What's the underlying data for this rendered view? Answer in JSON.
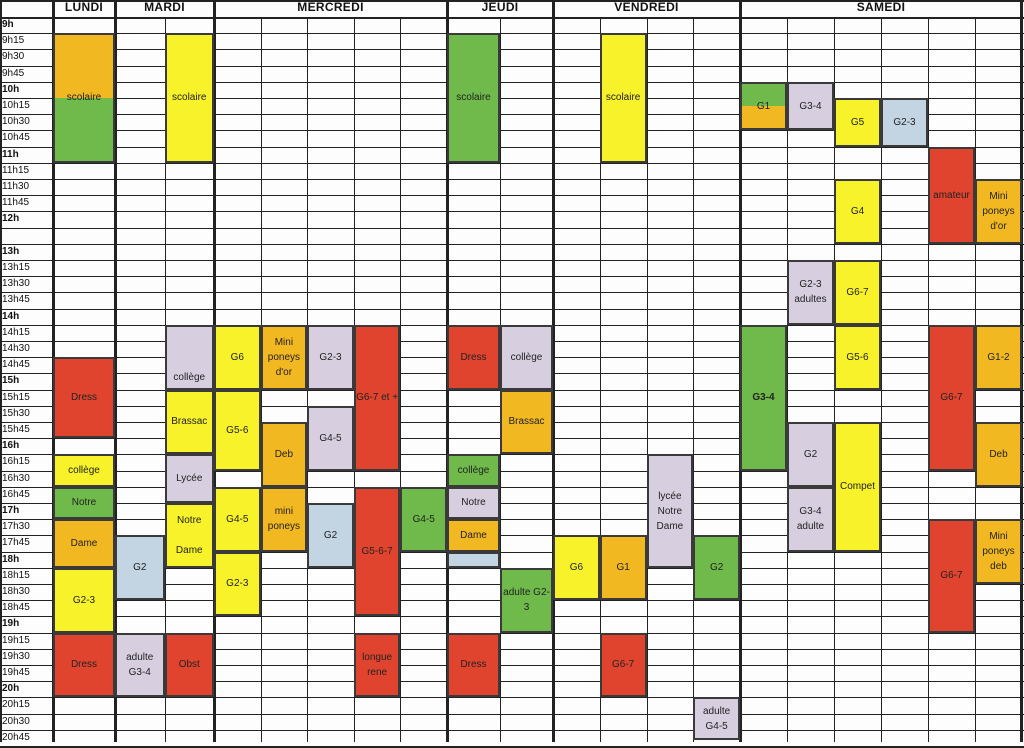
{
  "days": [
    "LUNDI",
    "MARDI",
    "MERCREDI",
    "JEUDI",
    "VENDREDI",
    "SAMEDI"
  ],
  "times": [
    "9h",
    "9h15",
    "9h30",
    "9h45",
    "10h",
    "10h15",
    "10h30",
    "10h45",
    "11h",
    "11h15",
    "11h30",
    "11h45",
    "12h",
    "",
    "13h",
    "13h15",
    "13h30",
    "13h45",
    "14h",
    "14h15",
    "14h30",
    "14h45",
    "15h",
    "15h15",
    "15h30",
    "15h45",
    "16h",
    "16h15",
    "16h30",
    "16h45",
    "17h",
    "17h30",
    "17h45",
    "18h",
    "18h15",
    "18h30",
    "18h45",
    "19h",
    "19h15",
    "19h30",
    "19h45",
    "20h",
    "20h15",
    "20h30",
    "20h45"
  ],
  "colors": {
    "green": "#6fba4a",
    "yellow": "#f7f22a",
    "orange": "#f2b822",
    "red": "#e0442f",
    "lavender": "#d7cfe0",
    "blue": "#c3d4e3"
  },
  "lessons": [
    {
      "day": 0,
      "col": 0,
      "start": 1,
      "end": 9,
      "bg": "linear-gradient(#f2b822 0%,#f2b822 50%,#6fba4a 50%,#6fba4a 100%)",
      "lines": [
        "scolaire"
      ]
    },
    {
      "day": 1,
      "col": 1,
      "start": 1,
      "end": 9,
      "color": "yellow",
      "lines": [
        "scolaire"
      ]
    },
    {
      "day": 3,
      "col": 0,
      "start": 1,
      "end": 9,
      "color": "green",
      "lines": [
        "scolaire"
      ]
    },
    {
      "day": 4,
      "col": 1,
      "start": 1,
      "end": 9,
      "color": "yellow",
      "lines": [
        "scolaire"
      ]
    },
    {
      "day": 5,
      "col": 0,
      "start": 4,
      "end": 7,
      "bg": "linear-gradient(#6fba4a 0%,#6fba4a 50%,#f2b822 50%,#f2b822 100%)",
      "lines": [
        "G1"
      ]
    },
    {
      "day": 5,
      "col": 1,
      "start": 4,
      "end": 7,
      "color": "lavender",
      "lines": [
        "G3-4"
      ]
    },
    {
      "day": 5,
      "col": 2,
      "start": 5,
      "end": 8,
      "color": "yellow",
      "lines": [
        "G5"
      ]
    },
    {
      "day": 5,
      "col": 3,
      "start": 5,
      "end": 8,
      "color": "blue",
      "lines": [
        "G2-3"
      ]
    },
    {
      "day": 5,
      "col": 4,
      "start": 8,
      "end": 14,
      "color": "red",
      "lines": [
        "amateur"
      ]
    },
    {
      "day": 5,
      "col": 5,
      "start": 10,
      "end": 14,
      "color": "orange",
      "lines": [
        "Mini",
        "poneys",
        "d'or"
      ]
    },
    {
      "day": 5,
      "col": 2,
      "start": 10,
      "end": 14,
      "color": "yellow",
      "lines": [
        "G4"
      ]
    },
    {
      "day": 5,
      "col": 1,
      "start": 15,
      "end": 19,
      "color": "lavender",
      "lines": [
        "G2-3",
        "adultes"
      ]
    },
    {
      "day": 5,
      "col": 2,
      "start": 15,
      "end": 19,
      "color": "yellow",
      "lines": [
        "G6-7"
      ]
    },
    {
      "day": 5,
      "col": 2,
      "start": 19,
      "end": 23,
      "color": "yellow",
      "lines": [
        "G5-6"
      ]
    },
    {
      "day": 5,
      "col": 0,
      "start": 19,
      "end": 28,
      "color": "green",
      "bold": true,
      "lines": [
        "G3-4"
      ]
    },
    {
      "day": 5,
      "col": 4,
      "start": 19,
      "end": 28,
      "color": "red",
      "lines": [
        "G6-7"
      ]
    },
    {
      "day": 5,
      "col": 5,
      "start": 19,
      "end": 23,
      "color": "orange",
      "lines": [
        "G1-2"
      ]
    },
    {
      "day": 5,
      "col": 1,
      "start": 25,
      "end": 29,
      "color": "lavender",
      "lines": [
        "G2"
      ]
    },
    {
      "day": 5,
      "col": 2,
      "start": 25,
      "end": 33,
      "color": "yellow",
      "lines": [
        "Compet"
      ]
    },
    {
      "day": 5,
      "col": 5,
      "start": 25,
      "end": 29,
      "color": "orange",
      "lines": [
        "Deb"
      ]
    },
    {
      "day": 5,
      "col": 1,
      "start": 29,
      "end": 33,
      "color": "lavender",
      "lines": [
        "G3-4",
        "adulte"
      ]
    },
    {
      "day": 5,
      "col": 4,
      "start": 31,
      "end": 38,
      "color": "red",
      "lines": [
        "G6-7"
      ]
    },
    {
      "day": 5,
      "col": 5,
      "start": 31,
      "end": 35,
      "color": "orange",
      "lines": [
        "Mini",
        "poneys",
        "deb"
      ]
    },
    {
      "day": 0,
      "col": 0,
      "start": 21,
      "end": 26,
      "color": "red",
      "lines": [
        "Dress"
      ]
    },
    {
      "day": 0,
      "col": 0,
      "start": 27,
      "end": 29,
      "color": "yellow",
      "lines": [
        "collège"
      ]
    },
    {
      "day": 0,
      "col": 0,
      "start": 29,
      "end": 31,
      "color": "green",
      "lines": [
        "Notre"
      ]
    },
    {
      "day": 0,
      "col": 0,
      "start": 31,
      "end": 34,
      "color": "orange",
      "lines": [
        "Dame"
      ]
    },
    {
      "day": 0,
      "col": 0,
      "start": 34,
      "end": 38,
      "color": "yellow",
      "lines": [
        "G2-3"
      ]
    },
    {
      "day": 0,
      "col": 0,
      "start": 38,
      "end": 42,
      "color": "red",
      "lines": [
        "Dress"
      ]
    },
    {
      "day": 1,
      "col": 1,
      "start": 19,
      "end": 23,
      "color": "lavender",
      "align": "bottom",
      "lines": [
        "collège"
      ]
    },
    {
      "day": 1,
      "col": 1,
      "start": 23,
      "end": 27,
      "color": "yellow",
      "lines": [
        "Brassac"
      ]
    },
    {
      "day": 1,
      "col": 1,
      "start": 27,
      "end": 30,
      "color": "lavender",
      "lines": [
        "Lycée"
      ]
    },
    {
      "day": 1,
      "col": 1,
      "start": 30,
      "end": 34,
      "color": "yellow",
      "lines": [
        "Notre",
        "",
        "Dame"
      ]
    },
    {
      "day": 1,
      "col": 0,
      "start": 32,
      "end": 36,
      "color": "blue",
      "lines": [
        "G2"
      ]
    },
    {
      "day": 1,
      "col": 0,
      "start": 38,
      "end": 42,
      "color": "lavender",
      "lines": [
        "adulte",
        "G3-4"
      ]
    },
    {
      "day": 1,
      "col": 1,
      "start": 38,
      "end": 42,
      "color": "red",
      "lines": [
        "Obst"
      ]
    },
    {
      "day": 2,
      "col": 0,
      "start": 19,
      "end": 23,
      "color": "yellow",
      "lines": [
        "G6"
      ]
    },
    {
      "day": 2,
      "col": 1,
      "start": 19,
      "end": 23,
      "color": "orange",
      "lines": [
        "Mini",
        "poneys",
        "d'or"
      ]
    },
    {
      "day": 2,
      "col": 2,
      "start": 19,
      "end": 23,
      "color": "lavender",
      "lines": [
        "G2-3"
      ]
    },
    {
      "day": 2,
      "col": 3,
      "start": 19,
      "end": 28,
      "color": "red",
      "lines": [
        "G6-7 et +"
      ]
    },
    {
      "day": 2,
      "col": 0,
      "start": 23,
      "end": 28,
      "color": "yellow",
      "lines": [
        "G5-6"
      ]
    },
    {
      "day": 2,
      "col": 2,
      "start": 24,
      "end": 28,
      "color": "lavender",
      "lines": [
        "G4-5"
      ]
    },
    {
      "day": 2,
      "col": 1,
      "start": 25,
      "end": 29,
      "color": "orange",
      "lines": [
        "Deb"
      ]
    },
    {
      "day": 2,
      "col": 0,
      "start": 29,
      "end": 33,
      "color": "yellow",
      "lines": [
        "G4-5"
      ]
    },
    {
      "day": 2,
      "col": 1,
      "start": 29,
      "end": 33,
      "color": "orange",
      "lines": [
        "mini",
        "poneys"
      ]
    },
    {
      "day": 2,
      "col": 2,
      "start": 30,
      "end": 34,
      "color": "blue",
      "lines": [
        "G2"
      ]
    },
    {
      "day": 2,
      "col": 3,
      "start": 29,
      "end": 37,
      "color": "red",
      "lines": [
        "G5-6-7"
      ]
    },
    {
      "day": 2,
      "col": 4,
      "start": 29,
      "end": 33,
      "color": "green",
      "lines": [
        "G4-5"
      ]
    },
    {
      "day": 2,
      "col": 0,
      "start": 33,
      "end": 37,
      "color": "yellow",
      "lines": [
        "G2-3"
      ]
    },
    {
      "day": 2,
      "col": 3,
      "start": 38,
      "end": 42,
      "color": "red",
      "lines": [
        "longue",
        "rene"
      ]
    },
    {
      "day": 3,
      "col": 0,
      "start": 19,
      "end": 23,
      "color": "red",
      "lines": [
        "Dress"
      ]
    },
    {
      "day": 3,
      "col": 1,
      "start": 19,
      "end": 23,
      "color": "lavender",
      "lines": [
        "collège"
      ]
    },
    {
      "day": 3,
      "col": 1,
      "start": 23,
      "end": 27,
      "color": "orange",
      "lines": [
        "Brassac"
      ]
    },
    {
      "day": 3,
      "col": 0,
      "start": 27,
      "end": 29,
      "color": "green",
      "lines": [
        "collège"
      ]
    },
    {
      "day": 3,
      "col": 0,
      "start": 29,
      "end": 31,
      "color": "lavender",
      "lines": [
        "Notre"
      ]
    },
    {
      "day": 3,
      "col": 0,
      "start": 31,
      "end": 33,
      "color": "orange",
      "lines": [
        "Dame"
      ]
    },
    {
      "day": 3,
      "col": 0,
      "start": 33,
      "end": 34,
      "color": "blue",
      "lines": []
    },
    {
      "day": 3,
      "col": 1,
      "start": 34,
      "end": 38,
      "color": "green",
      "lines": [
        "adulte G2-",
        "3"
      ]
    },
    {
      "day": 3,
      "col": 0,
      "start": 38,
      "end": 42,
      "color": "red",
      "lines": [
        "Dress"
      ]
    },
    {
      "day": 4,
      "col": 2,
      "start": 27,
      "end": 34,
      "color": "lavender",
      "lines": [
        "lycée",
        "Notre",
        "Dame"
      ]
    },
    {
      "day": 4,
      "col": 0,
      "start": 32,
      "end": 36,
      "color": "yellow",
      "lines": [
        "G6"
      ]
    },
    {
      "day": 4,
      "col": 1,
      "start": 32,
      "end": 36,
      "color": "orange",
      "lines": [
        "G1"
      ]
    },
    {
      "day": 4,
      "col": 3,
      "start": 32,
      "end": 36,
      "color": "green",
      "lines": [
        "G2"
      ]
    },
    {
      "day": 4,
      "col": 1,
      "start": 38,
      "end": 42,
      "color": "red",
      "lines": [
        "G6-7"
      ]
    },
    {
      "day": 4,
      "col": 3,
      "start": 42,
      "end": 46,
      "color": "lavender",
      "lines": [
        "adulte",
        "G4-5"
      ]
    }
  ]
}
